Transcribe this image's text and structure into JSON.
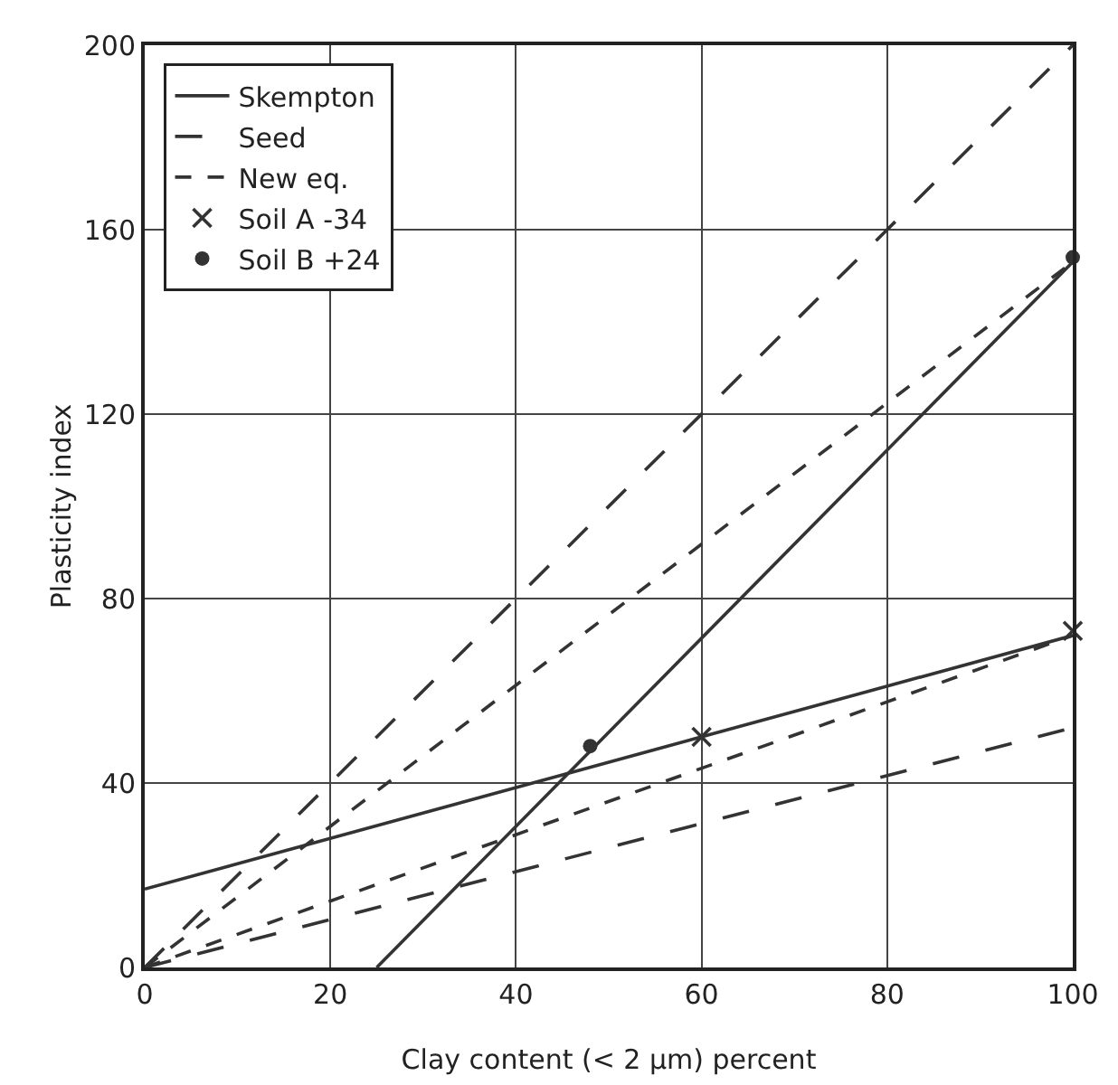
{
  "chart_data": {
    "type": "line",
    "xlabel": "Clay content (< 2 µm) percent",
    "ylabel": "Plasticity index",
    "xlim": [
      0,
      100
    ],
    "xticks": [
      0,
      20,
      40,
      60,
      80,
      100
    ],
    "ylim": [
      0,
      200
    ],
    "yticks": [
      0,
      40,
      80,
      120,
      160,
      200
    ],
    "grid": true,
    "legend": "top left",
    "series": [
      {
        "name": "Skempton",
        "color": "#333333",
        "line_style": "solid",
        "marker": "none",
        "x": [
          0,
          100
        ],
        "values": [
          17,
          72
        ]
      },
      {
        "color": "#333333",
        "line_style": "solid",
        "marker": "none",
        "x": [
          25,
          100
        ],
        "values": [
          0,
          153
        ]
      },
      {
        "name": "Seed",
        "color": "#333333",
        "line_style": "dashed",
        "marker": "none",
        "x": [
          0,
          100
        ],
        "values": [
          0,
          200
        ]
      },
      {
        "color": "#333333",
        "line_style": "dashed",
        "marker": "none",
        "x": [
          0,
          100
        ],
        "values": [
          0,
          52
        ]
      },
      {
        "name": "New eq.",
        "color": "#333333",
        "line_style": "dotted",
        "marker": "none",
        "x": [
          0,
          100
        ],
        "values": [
          0,
          153
        ]
      },
      {
        "color": "#333333",
        "line_style": "dotted",
        "marker": "none",
        "x": [
          0,
          100
        ],
        "values": [
          0,
          72
        ]
      },
      {
        "name": "Soil A -34",
        "type": "scatter",
        "color": "#333333",
        "marker": "cross",
        "x": [
          60,
          100
        ],
        "values": [
          50,
          73
        ]
      },
      {
        "name": "Soil B +24",
        "type": "scatter",
        "color": "#333333",
        "marker": "circle",
        "x": [
          48,
          100
        ],
        "values": [
          48,
          154
        ]
      }
    ]
  }
}
